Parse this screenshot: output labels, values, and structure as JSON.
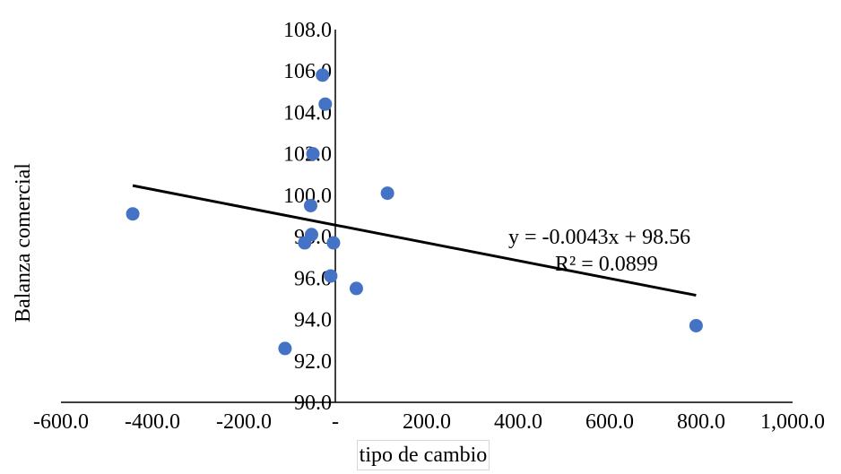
{
  "chart_data": {
    "type": "scatter",
    "title": "",
    "xlabel": "tipo de cambio",
    "ylabel": "Balanza comercial",
    "xlim": [
      -600,
      1000
    ],
    "ylim": [
      90,
      108
    ],
    "x_ticks": [
      -600,
      -400,
      -200,
      0,
      200,
      400,
      600,
      800,
      1000
    ],
    "x_tick_labels": [
      "-600.0",
      "-400.0",
      "-200.0",
      "-",
      "200.0",
      "400.0",
      "600.0",
      "800.0",
      "1,000.0"
    ],
    "y_ticks": [
      90,
      92,
      94,
      96,
      98,
      100,
      102,
      104,
      106,
      108
    ],
    "y_tick_labels": [
      "90.0",
      "92.0",
      "94.0",
      "96.0",
      "98.0",
      "100.0",
      "102.0",
      "104.0",
      "106.0",
      "108.0"
    ],
    "points": [
      {
        "x": -443,
        "y": 99.1
      },
      {
        "x": -28,
        "y": 105.8
      },
      {
        "x": -22,
        "y": 104.4
      },
      {
        "x": -49,
        "y": 102.0
      },
      {
        "x": -54,
        "y": 99.5
      },
      {
        "x": -52,
        "y": 98.1
      },
      {
        "x": -67,
        "y": 97.7
      },
      {
        "x": -4,
        "y": 97.7
      },
      {
        "x": -10,
        "y": 96.1
      },
      {
        "x": 46,
        "y": 95.5
      },
      {
        "x": 114,
        "y": 100.1
      },
      {
        "x": -110,
        "y": 92.6
      },
      {
        "x": 789,
        "y": 93.7
      }
    ],
    "trendline": {
      "slope": -0.0043,
      "intercept": 98.56,
      "x_start": -443,
      "x_end": 789,
      "equation": "y = -0.0043x + 98.56",
      "r_squared": "R² = 0.0899"
    },
    "marker_color": "#4472c4",
    "trendline_color": "#000000",
    "legend": "none",
    "grid": false
  }
}
